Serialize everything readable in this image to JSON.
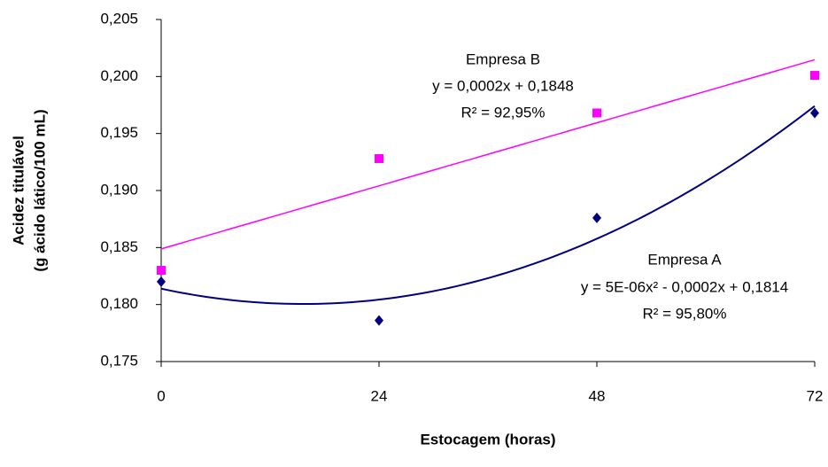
{
  "chart_data": {
    "type": "scatter",
    "x_label": "Estocagem (horas)",
    "y_label": [
      "Acidez titulável",
      "(g ácido lático/100 mL)"
    ],
    "x": [
      0,
      24,
      48,
      72
    ],
    "xlim": [
      0,
      72
    ],
    "xticks": [
      0,
      24,
      48,
      72
    ],
    "ylim": [
      0.175,
      0.205
    ],
    "yticks": [
      {
        "value": 0.175,
        "label": "0,175"
      },
      {
        "value": 0.18,
        "label": "0,180"
      },
      {
        "value": 0.185,
        "label": "0,185"
      },
      {
        "value": 0.19,
        "label": "0,190"
      },
      {
        "value": 0.195,
        "label": "0,195"
      },
      {
        "value": 0.2,
        "label": "0,200"
      },
      {
        "value": 0.205,
        "label": "0,205"
      }
    ],
    "series": [
      {
        "name": "Empresa A",
        "color": "#000080",
        "marker": "diamond",
        "values": [
          0.182,
          0.1786,
          0.1876,
          0.1968
        ],
        "trendline": "polynomial",
        "order": 2,
        "equation": "y = 5E-06x² - 0,0002x + 0,1814",
        "r2": "R² = 95,80%"
      },
      {
        "name": "Empresa B",
        "color": "#ff00ff",
        "marker": "square",
        "values": [
          0.183,
          0.1928,
          0.1968,
          0.2001
        ],
        "trendline": "linear",
        "order": 1,
        "equation": "y = 0,0002x + 0,1848",
        "r2": "R² = 92,95%"
      }
    ]
  }
}
